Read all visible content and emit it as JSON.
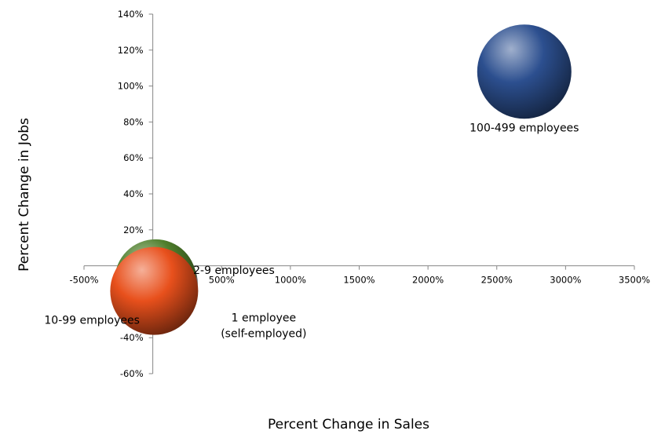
{
  "chart_data": {
    "type": "bubble",
    "title": "",
    "xlabel": "Percent Change in Sales",
    "ylabel": "Percent Change in Jobs",
    "xlim": [
      -500,
      3500
    ],
    "ylim": [
      -60,
      140
    ],
    "x_ticks": [
      -500,
      0,
      500,
      1000,
      1500,
      2000,
      2500,
      3000,
      3500
    ],
    "y_ticks": [
      -60,
      -40,
      -20,
      0,
      20,
      40,
      60,
      80,
      100,
      120,
      140
    ],
    "x_tick_labels": [
      "-500%",
      "0%",
      "500%",
      "1000%",
      "1500%",
      "2000%",
      "2500%",
      "3000%",
      "3500%"
    ],
    "y_tick_labels": [
      "-60%",
      "-40%",
      "-20%",
      "0%",
      "20%",
      "40%",
      "60%",
      "80%",
      "100%",
      "120%",
      "140%"
    ],
    "grid": false,
    "series": [
      {
        "name": "1 employee",
        "label_lines": [
          "1 employee",
          "(self-employed)"
        ],
        "x": 30,
        "y": -10,
        "size": 52,
        "color": "#a0a0a0"
      },
      {
        "name": "2-9 employees",
        "label_lines": [
          "2-9 employees"
        ],
        "x": 20,
        "y": -8,
        "size": 52,
        "color": "#4f7f2c"
      },
      {
        "name": "10-99 employees",
        "label_lines": [
          "10-99 employees"
        ],
        "x": 10,
        "y": -14,
        "size": 56,
        "color": "#e8501c"
      },
      {
        "name": "100-499 employees",
        "label_lines": [
          "100-499 employees"
        ],
        "x": 2700,
        "y": 108,
        "size": 60,
        "color": "#2c4f8f"
      }
    ]
  }
}
